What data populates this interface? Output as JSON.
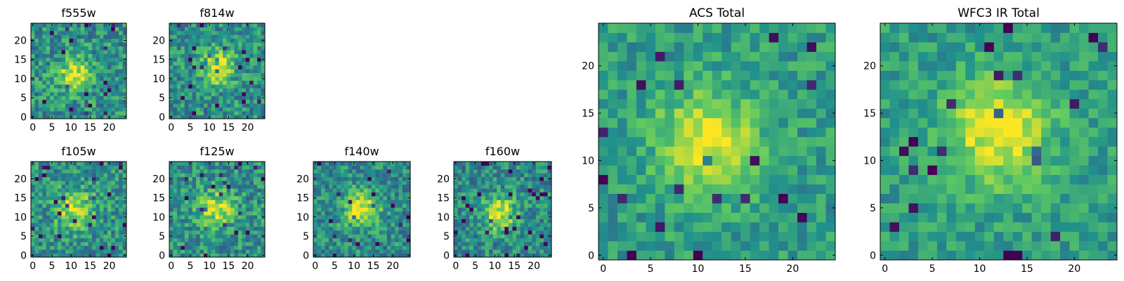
{
  "figure": {
    "colormap": "viridis",
    "colormap_stops": [
      "#440154",
      "#3b528b",
      "#21918c",
      "#5ec962",
      "#fde725"
    ]
  },
  "chart_data": [
    {
      "type": "heatmap",
      "title": "f555w",
      "grid_size": [
        25,
        25
      ],
      "xlim": [
        0,
        24
      ],
      "ylim": [
        0,
        24
      ],
      "xticks": [
        "0",
        "5",
        "10",
        "15",
        "20"
      ],
      "yticks": [
        "0",
        "5",
        "10",
        "15",
        "20"
      ],
      "source_center": [
        11,
        11
      ],
      "source_amplitude": 0.45,
      "source_width": 3.0,
      "noise_level": 0.45,
      "baseline": 0.5,
      "seed": 11
    },
    {
      "type": "heatmap",
      "title": "f814w",
      "grid_size": [
        25,
        25
      ],
      "xlim": [
        0,
        24
      ],
      "ylim": [
        0,
        24
      ],
      "xticks": [
        "0",
        "5",
        "10",
        "15",
        "20"
      ],
      "yticks": [
        "0",
        "5",
        "10",
        "15",
        "20"
      ],
      "source_center": [
        12,
        13
      ],
      "source_amplitude": 0.45,
      "source_width": 3.2,
      "noise_level": 0.42,
      "baseline": 0.5,
      "seed": 23
    },
    {
      "type": "heatmap",
      "title": "f105w",
      "grid_size": [
        25,
        25
      ],
      "xlim": [
        0,
        24
      ],
      "ylim": [
        0,
        24
      ],
      "xticks": [
        "0",
        "5",
        "10",
        "15",
        "20"
      ],
      "yticks": [
        "0",
        "5",
        "10",
        "15",
        "20"
      ],
      "source_center": [
        11,
        12
      ],
      "source_amplitude": 0.4,
      "source_width": 3.5,
      "noise_level": 0.42,
      "baseline": 0.5,
      "seed": 37
    },
    {
      "type": "heatmap",
      "title": "f125w",
      "grid_size": [
        25,
        25
      ],
      "xlim": [
        0,
        24
      ],
      "ylim": [
        0,
        24
      ],
      "xticks": [
        "0",
        "5",
        "10",
        "15",
        "20"
      ],
      "yticks": [
        "0",
        "5",
        "10",
        "15",
        "20"
      ],
      "source_center": [
        12,
        12
      ],
      "source_amplitude": 0.4,
      "source_width": 3.4,
      "noise_level": 0.42,
      "baseline": 0.5,
      "seed": 41
    },
    {
      "type": "heatmap",
      "title": "f140w",
      "grid_size": [
        25,
        25
      ],
      "xlim": [
        0,
        24
      ],
      "ylim": [
        0,
        24
      ],
      "xticks": [
        "0",
        "5",
        "10",
        "15",
        "20"
      ],
      "yticks": [
        "0",
        "5",
        "10",
        "15",
        "20"
      ],
      "source_center": [
        12,
        12
      ],
      "source_amplitude": 0.5,
      "source_width": 3.2,
      "noise_level": 0.4,
      "baseline": 0.48,
      "seed": 53
    },
    {
      "type": "heatmap",
      "title": "f160w",
      "grid_size": [
        25,
        25
      ],
      "xlim": [
        0,
        24
      ],
      "ylim": [
        0,
        24
      ],
      "xticks": [
        "0",
        "5",
        "10",
        "15",
        "20"
      ],
      "yticks": [
        "0",
        "5",
        "10",
        "15",
        "20"
      ],
      "source_center": [
        11,
        11
      ],
      "source_amplitude": 0.5,
      "source_width": 3.0,
      "noise_level": 0.4,
      "baseline": 0.48,
      "seed": 67
    },
    {
      "type": "heatmap",
      "title": "ACS Total",
      "grid_size": [
        25,
        25
      ],
      "xlim": [
        0,
        24
      ],
      "ylim": [
        0,
        24
      ],
      "xticks": [
        "0",
        "5",
        "10",
        "15",
        "20"
      ],
      "yticks": [
        "0",
        "5",
        "10",
        "15",
        "20"
      ],
      "source_center": [
        11,
        12
      ],
      "source_amplitude": 0.45,
      "source_width": 3.6,
      "noise_level": 0.3,
      "baseline": 0.55,
      "seed": 79
    },
    {
      "type": "heatmap",
      "title": "WFC3 IR Total",
      "grid_size": [
        25,
        25
      ],
      "xlim": [
        0,
        24
      ],
      "ylim": [
        0,
        24
      ],
      "xticks": [
        "0",
        "5",
        "10",
        "15",
        "20"
      ],
      "yticks": [
        "0",
        "5",
        "10",
        "15",
        "20"
      ],
      "source_center": [
        12,
        13
      ],
      "source_amplitude": 0.45,
      "source_width": 3.8,
      "noise_level": 0.28,
      "baseline": 0.55,
      "seed": 97
    }
  ]
}
